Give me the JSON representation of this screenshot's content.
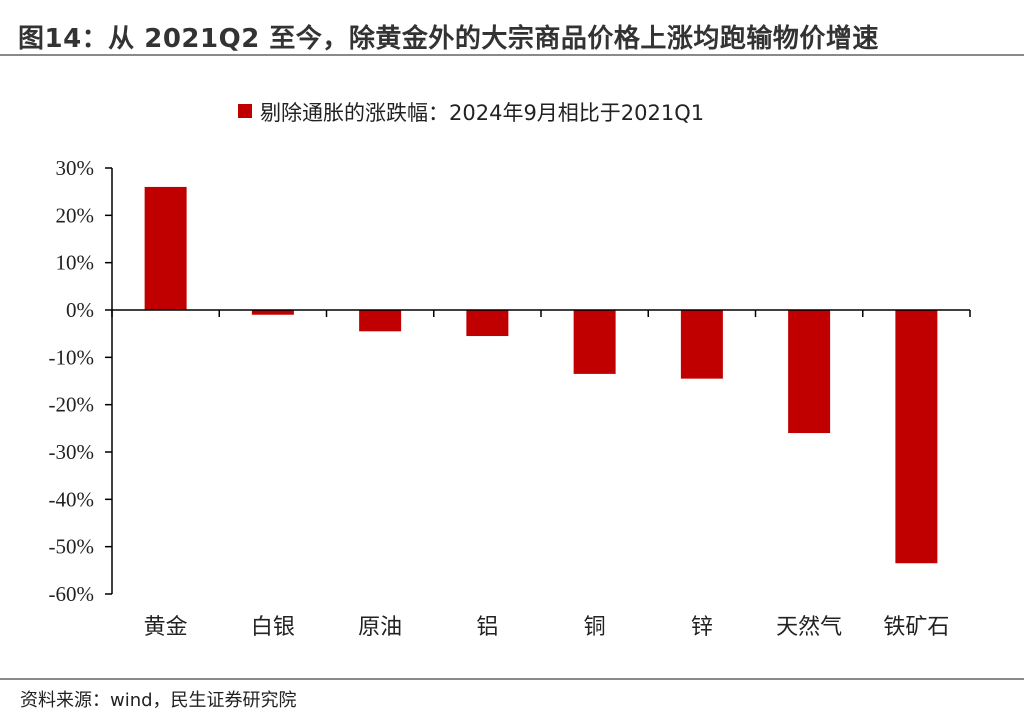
{
  "figure": {
    "title": "图14：从 2021Q2 至今，除黄金外的大宗商品价格上涨均跑输物价增速",
    "source": "资料来源：wind，民生证券研究院"
  },
  "chart_data": {
    "type": "bar",
    "categories": [
      "黄金",
      "白银",
      "原油",
      "铝",
      "铜",
      "锌",
      "天然气",
      "铁矿石"
    ],
    "series": [
      {
        "name": "剔除通胀的涨跌幅：2024年9月相比于2021Q1",
        "color": "#c00000",
        "values": [
          26.0,
          -1.0,
          -4.5,
          -5.5,
          -13.5,
          -14.5,
          -26.0,
          -53.5
        ]
      }
    ],
    "ylim": [
      -60,
      30
    ],
    "yticks": [
      30,
      20,
      10,
      0,
      -10,
      -20,
      -30,
      -40,
      -50,
      -60
    ],
    "ytick_labels": [
      "30%",
      "20%",
      "10%",
      "0%",
      "-10%",
      "-20%",
      "-30%",
      "-40%",
      "-50%",
      "-60%"
    ],
    "legend_position": "top-center",
    "grid": false
  }
}
